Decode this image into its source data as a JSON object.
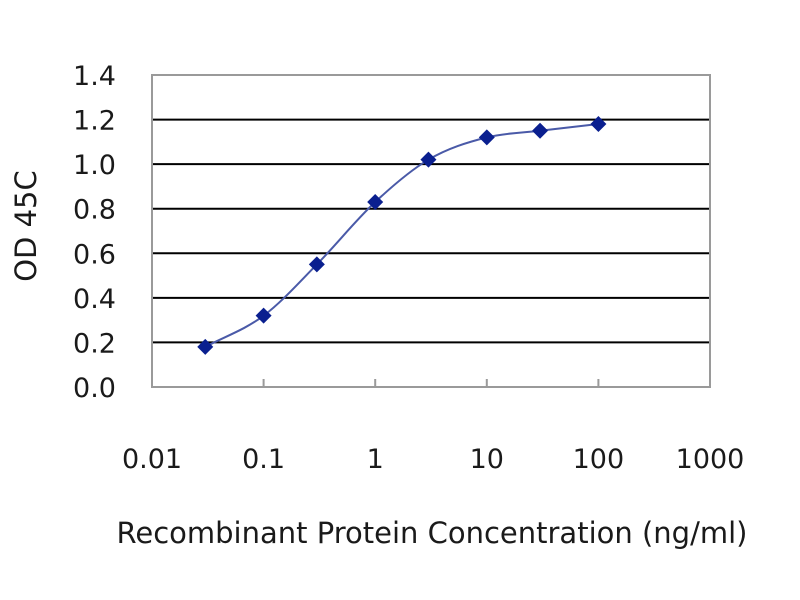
{
  "chart_data": {
    "type": "scatter",
    "xlabel": "Recombinant Protein Concentration (ng/ml)",
    "ylabel": "OD 45C",
    "x_scale": "log",
    "xlim": [
      0.01,
      1000
    ],
    "ylim": [
      0.0,
      1.4
    ],
    "x_ticks": [
      0.01,
      0.1,
      1,
      10,
      100,
      1000
    ],
    "x_tick_labels": [
      "0.01",
      "0.1",
      "1",
      "10",
      "100",
      "1000"
    ],
    "y_ticks": [
      0.0,
      0.2,
      0.4,
      0.6,
      0.8,
      1.0,
      1.2,
      1.4
    ],
    "y_tick_labels": [
      "0.0",
      "0.2",
      "0.4",
      "0.6",
      "0.8",
      "1.0",
      "1.2",
      "1.4"
    ],
    "grid": "horizontal",
    "fitted_curve": true,
    "series": [
      {
        "x": [
          0.03,
          0.1,
          0.3,
          1,
          3,
          10,
          30,
          100
        ],
        "y": [
          0.18,
          0.32,
          0.55,
          0.83,
          1.02,
          1.12,
          1.15,
          1.18
        ]
      }
    ],
    "colors": {
      "marker": "#0a1f8f",
      "curve": "#4a5aa8",
      "grid": "#000000",
      "frame": "#9a9a9a"
    }
  }
}
